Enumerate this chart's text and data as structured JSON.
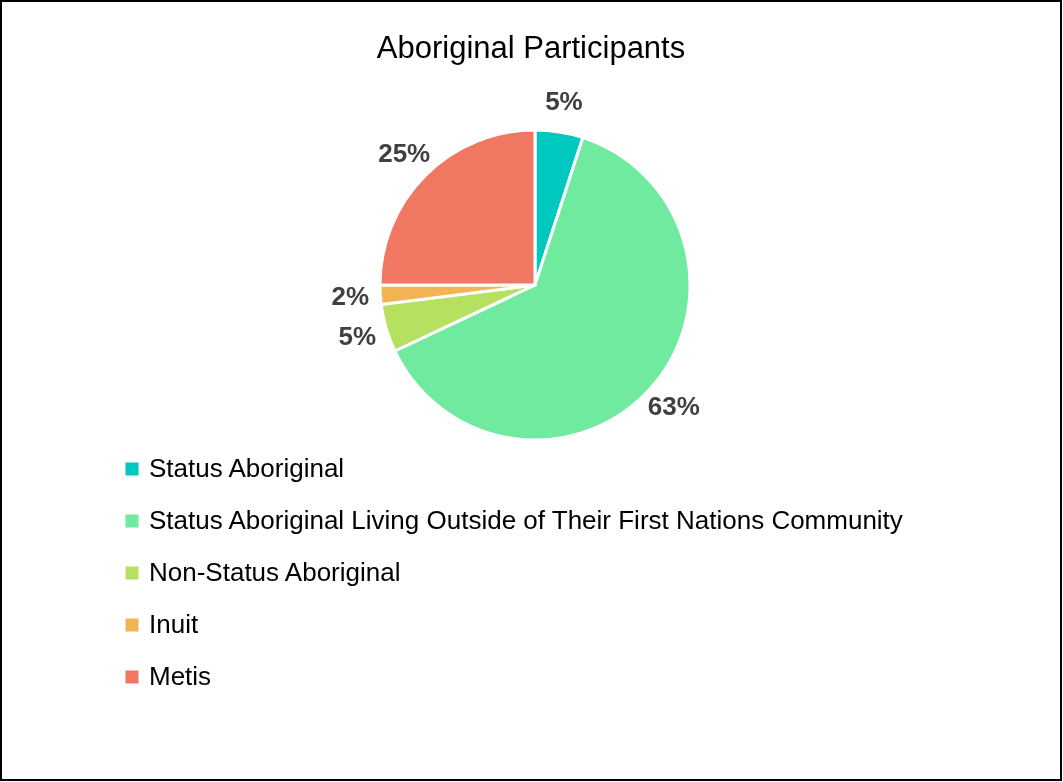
{
  "chart_data": {
    "type": "pie",
    "title": "Aboriginal Participants",
    "categories": [
      "Status Aboriginal",
      "Status Aboriginal Living Outside of Their First Nations Community",
      "Non-Status Aboriginal",
      "Inuit",
      "Metis"
    ],
    "values": [
      5,
      63,
      5,
      2,
      25
    ],
    "colors": [
      "#00c8be",
      "#6fea9f",
      "#b6e060",
      "#f2b453",
      "#f07762"
    ],
    "value_labels": [
      "5%",
      "63%",
      "5%",
      "2%",
      "25%"
    ],
    "legend": "bottom"
  }
}
